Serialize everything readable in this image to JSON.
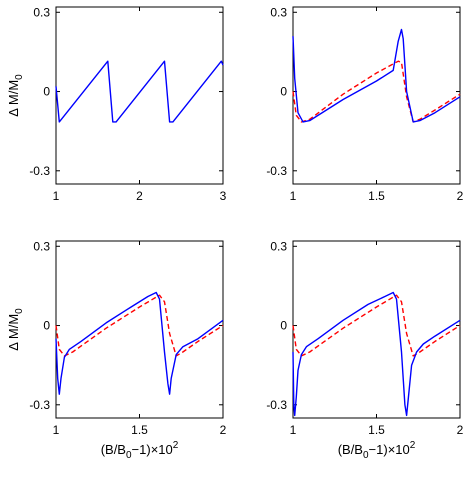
{
  "figure": {
    "ylabel_main": "Δ M/M",
    "ylabel_sub": "0",
    "xlabel_pre": "(B/B",
    "xlabel_sub": "0",
    "xlabel_mid": "−1)×10",
    "xlabel_sup": "2"
  },
  "chart_data": [
    {
      "type": "line",
      "panel": "top-left",
      "xlim": [
        1,
        3
      ],
      "ylim": [
        -0.35,
        0.32
      ],
      "xticks": [
        1,
        2,
        3
      ],
      "xtick_labels": [
        "1",
        "2",
        "3"
      ],
      "yticks": [
        0.3,
        0,
        -0.3
      ],
      "ytick_labels": [
        "0.3",
        "0",
        "-0.3"
      ],
      "show_ylabel": true,
      "show_xlabel": false,
      "series": [
        {
          "color": "#0000ff",
          "style": "solid",
          "x": [
            1.0,
            1.04,
            1.62,
            1.68,
            1.72,
            2.3,
            2.36,
            2.4,
            2.98,
            3.0
          ],
          "y": [
            0.02,
            -0.115,
            0.115,
            -0.115,
            -0.115,
            0.115,
            -0.115,
            -0.115,
            0.115,
            0.1
          ]
        }
      ]
    },
    {
      "type": "line",
      "panel": "top-right",
      "xlim": [
        1,
        2
      ],
      "ylim": [
        -0.35,
        0.32
      ],
      "xticks": [
        1,
        1.5,
        2
      ],
      "xtick_labels": [
        "1",
        "1.5",
        "2"
      ],
      "yticks": [
        0.3,
        0,
        -0.3
      ],
      "ytick_labels": [
        "0.3",
        "0",
        "-0.3"
      ],
      "show_ylabel": false,
      "show_xlabel": false,
      "series": [
        {
          "color": "#0000ff",
          "style": "solid",
          "x": [
            1.0,
            1.01,
            1.03,
            1.06,
            1.1,
            1.3,
            1.5,
            1.6,
            1.63,
            1.65,
            1.66,
            1.68,
            1.72,
            1.76,
            1.85,
            2.0
          ],
          "y": [
            0.21,
            0.05,
            -0.08,
            -0.115,
            -0.11,
            -0.03,
            0.04,
            0.08,
            0.19,
            0.235,
            0.2,
            0.0,
            -0.115,
            -0.11,
            -0.08,
            -0.02
          ]
        },
        {
          "color": "#ff0000",
          "style": "dashed",
          "x": [
            1.0,
            1.02,
            1.05,
            1.1,
            1.3,
            1.5,
            1.63,
            1.65,
            1.68,
            1.72,
            1.76,
            1.85,
            2.0
          ],
          "y": [
            0.0,
            -0.09,
            -0.115,
            -0.105,
            -0.01,
            0.07,
            0.115,
            0.11,
            -0.02,
            -0.115,
            -0.105,
            -0.07,
            -0.01
          ]
        }
      ]
    },
    {
      "type": "line",
      "panel": "bottom-left",
      "xlim": [
        1,
        2
      ],
      "ylim": [
        -0.35,
        0.32
      ],
      "xticks": [
        1,
        1.5,
        2
      ],
      "xtick_labels": [
        "1",
        "1.5",
        "2"
      ],
      "yticks": [
        0.3,
        0,
        -0.3
      ],
      "ytick_labels": [
        "0.3",
        "0",
        "-0.3"
      ],
      "show_ylabel": true,
      "show_xlabel": true,
      "series": [
        {
          "color": "#0000ff",
          "style": "solid",
          "x": [
            1.0,
            1.01,
            1.02,
            1.03,
            1.05,
            1.08,
            1.15,
            1.3,
            1.45,
            1.55,
            1.6,
            1.62,
            1.65,
            1.67,
            1.68,
            1.69,
            1.72,
            1.76,
            1.85,
            2.0
          ],
          "y": [
            -0.05,
            -0.2,
            -0.26,
            -0.2,
            -0.12,
            -0.09,
            -0.06,
            0.01,
            0.07,
            0.11,
            0.125,
            0.1,
            -0.1,
            -0.22,
            -0.26,
            -0.2,
            -0.11,
            -0.08,
            -0.05,
            0.02
          ]
        },
        {
          "color": "#ff0000",
          "style": "dashed",
          "x": [
            1.0,
            1.02,
            1.05,
            1.1,
            1.3,
            1.5,
            1.62,
            1.65,
            1.68,
            1.72,
            1.76,
            1.85,
            2.0
          ],
          "y": [
            0.0,
            -0.09,
            -0.115,
            -0.1,
            -0.01,
            0.07,
            0.115,
            0.09,
            -0.03,
            -0.115,
            -0.1,
            -0.06,
            0.0
          ]
        }
      ]
    },
    {
      "type": "line",
      "panel": "bottom-right",
      "xlim": [
        1,
        2
      ],
      "ylim": [
        -0.35,
        0.32
      ],
      "xticks": [
        1,
        1.5,
        2
      ],
      "xtick_labels": [
        "1",
        "1.5",
        "2"
      ],
      "yticks": [
        0.3,
        0,
        -0.3
      ],
      "ytick_labels": [
        "0.3",
        "0",
        "-0.3"
      ],
      "show_ylabel": false,
      "show_xlabel": true,
      "series": [
        {
          "color": "#0000ff",
          "style": "solid",
          "x": [
            1.0,
            1.005,
            1.01,
            1.02,
            1.03,
            1.05,
            1.08,
            1.15,
            1.3,
            1.45,
            1.55,
            1.6,
            1.62,
            1.65,
            1.67,
            1.68,
            1.69,
            1.71,
            1.74,
            1.78,
            1.85,
            2.0
          ],
          "y": [
            -0.1,
            -0.3,
            -0.34,
            -0.27,
            -0.17,
            -0.11,
            -0.08,
            -0.05,
            0.02,
            0.08,
            0.11,
            0.125,
            0.1,
            -0.1,
            -0.3,
            -0.34,
            -0.28,
            -0.15,
            -0.1,
            -0.07,
            -0.04,
            0.02
          ]
        },
        {
          "color": "#ff0000",
          "style": "dashed",
          "x": [
            1.0,
            1.02,
            1.05,
            1.1,
            1.3,
            1.5,
            1.62,
            1.65,
            1.68,
            1.72,
            1.76,
            1.85,
            2.0
          ],
          "y": [
            0.0,
            -0.09,
            -0.115,
            -0.1,
            -0.01,
            0.07,
            0.115,
            0.09,
            -0.03,
            -0.115,
            -0.1,
            -0.06,
            0.0
          ]
        }
      ]
    }
  ]
}
